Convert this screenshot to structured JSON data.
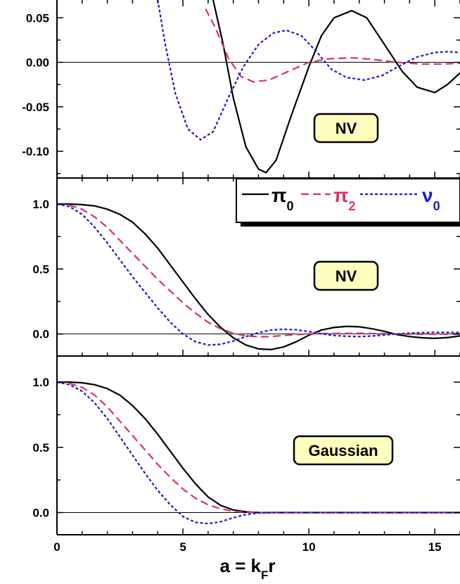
{
  "chart_data": [
    {
      "type": "line",
      "title": "",
      "xlabel": "",
      "ylabel": "",
      "xlim": [
        0,
        16
      ],
      "ylim": [
        -0.13,
        0.07
      ],
      "yticks": [
        0.05,
        0.0,
        -0.05,
        -0.1
      ],
      "ytick_labels": [
        "0.05",
        "0.00",
        "-0.05",
        "-0.10"
      ],
      "grid": false,
      "annotation": "NV",
      "series": [
        {
          "key": "pi0",
          "color": "#000000",
          "dash": "solid",
          "points": [
            [
              6.2,
              0.07
            ],
            [
              6.6,
              0.02
            ],
            [
              7.0,
              -0.04
            ],
            [
              7.5,
              -0.095
            ],
            [
              8.0,
              -0.12
            ],
            [
              8.3,
              -0.124
            ],
            [
              8.7,
              -0.11
            ],
            [
              9.3,
              -0.06
            ],
            [
              10.0,
              -0.005
            ],
            [
              10.5,
              0.03
            ],
            [
              11.0,
              0.05
            ],
            [
              11.7,
              0.058
            ],
            [
              12.3,
              0.05
            ],
            [
              13.0,
              0.02
            ],
            [
              13.7,
              -0.01
            ],
            [
              14.3,
              -0.028
            ],
            [
              15.0,
              -0.034
            ],
            [
              15.5,
              -0.025
            ],
            [
              16.0,
              -0.012
            ]
          ]
        },
        {
          "key": "pi2",
          "color": "#d6336c",
          "dash": "long-dash",
          "points": [
            [
              5.9,
              0.06
            ],
            [
              6.3,
              0.038
            ],
            [
              6.8,
              0.005
            ],
            [
              7.3,
              -0.016
            ],
            [
              7.8,
              -0.022
            ],
            [
              8.4,
              -0.02
            ],
            [
              9.2,
              -0.01
            ],
            [
              10.0,
              0.0
            ],
            [
              10.8,
              0.004
            ],
            [
              11.8,
              0.005
            ],
            [
              12.6,
              0.003
            ],
            [
              13.5,
              0.0
            ],
            [
              14.5,
              -0.002
            ],
            [
              15.3,
              -0.002
            ],
            [
              16.0,
              -0.001
            ]
          ]
        },
        {
          "key": "nu0",
          "color": "#1c1cc4",
          "dash": "short-dash",
          "points": [
            [
              4.0,
              0.07
            ],
            [
              4.3,
              0.02
            ],
            [
              4.7,
              -0.035
            ],
            [
              5.2,
              -0.075
            ],
            [
              5.7,
              -0.087
            ],
            [
              6.2,
              -0.078
            ],
            [
              6.8,
              -0.04
            ],
            [
              7.4,
              -0.005
            ],
            [
              8.0,
              0.02
            ],
            [
              8.6,
              0.033
            ],
            [
              9.1,
              0.036
            ],
            [
              9.7,
              0.03
            ],
            [
              10.3,
              0.012
            ],
            [
              10.9,
              -0.008
            ],
            [
              11.5,
              -0.017
            ],
            [
              12.2,
              -0.02
            ],
            [
              12.9,
              -0.015
            ],
            [
              13.6,
              -0.004
            ],
            [
              14.3,
              0.006
            ],
            [
              15.0,
              0.011
            ],
            [
              15.5,
              0.012
            ],
            [
              16.0,
              0.011
            ]
          ]
        }
      ]
    },
    {
      "type": "line",
      "title": "",
      "xlabel": "",
      "ylabel": "",
      "xlim": [
        0,
        16
      ],
      "ylim": [
        -0.17,
        1.2
      ],
      "yticks": [
        1.0,
        0.5,
        0.0
      ],
      "ytick_labels": [
        "1.0",
        "0.5",
        "0.0"
      ],
      "grid": false,
      "annotation": "NV",
      "legend": {
        "placement": "top-right",
        "entries": [
          {
            "key": "pi0",
            "symbol": "π",
            "sub": "0"
          },
          {
            "key": "pi2",
            "symbol": "π",
            "sub": "2"
          },
          {
            "key": "nu0",
            "symbol": "ν",
            "sub": "0"
          }
        ]
      },
      "series": [
        {
          "key": "pi0",
          "color": "#000000",
          "dash": "solid",
          "points": [
            [
              0,
              1.0
            ],
            [
              0.5,
              1.0
            ],
            [
              1,
              0.995
            ],
            [
              1.5,
              0.985
            ],
            [
              2,
              0.96
            ],
            [
              2.5,
              0.92
            ],
            [
              3,
              0.86
            ],
            [
              3.5,
              0.77
            ],
            [
              4,
              0.66
            ],
            [
              4.5,
              0.53
            ],
            [
              5,
              0.4
            ],
            [
              5.5,
              0.27
            ],
            [
              6,
              0.15
            ],
            [
              6.5,
              0.05
            ],
            [
              7,
              -0.03
            ],
            [
              7.5,
              -0.085
            ],
            [
              8,
              -0.115
            ],
            [
              8.5,
              -0.12
            ],
            [
              9,
              -0.1
            ],
            [
              9.5,
              -0.06
            ],
            [
              10,
              -0.01
            ],
            [
              10.5,
              0.03
            ],
            [
              11,
              0.05
            ],
            [
              11.5,
              0.058
            ],
            [
              12,
              0.055
            ],
            [
              12.5,
              0.04
            ],
            [
              13,
              0.02
            ],
            [
              13.5,
              -0.005
            ],
            [
              14,
              -0.02
            ],
            [
              14.5,
              -0.03
            ],
            [
              15,
              -0.034
            ],
            [
              15.5,
              -0.028
            ],
            [
              16,
              -0.015
            ]
          ]
        },
        {
          "key": "pi2",
          "color": "#d6336c",
          "dash": "long-dash",
          "points": [
            [
              0,
              1.0
            ],
            [
              0.5,
              0.99
            ],
            [
              1,
              0.96
            ],
            [
              1.5,
              0.9
            ],
            [
              2,
              0.82
            ],
            [
              2.5,
              0.72
            ],
            [
              3,
              0.62
            ],
            [
              3.5,
              0.52
            ],
            [
              4,
              0.42
            ],
            [
              4.5,
              0.33
            ],
            [
              5,
              0.24
            ],
            [
              5.5,
              0.16
            ],
            [
              6,
              0.09
            ],
            [
              6.5,
              0.04
            ],
            [
              7,
              0.005
            ],
            [
              7.5,
              -0.015
            ],
            [
              8,
              -0.022
            ],
            [
              8.5,
              -0.02
            ],
            [
              9,
              -0.012
            ],
            [
              9.5,
              -0.005
            ],
            [
              10,
              0.0
            ],
            [
              11,
              0.004
            ],
            [
              12,
              0.005
            ],
            [
              13,
              0.002
            ],
            [
              14,
              -0.001
            ],
            [
              15,
              -0.002
            ],
            [
              16,
              -0.001
            ]
          ]
        },
        {
          "key": "nu0",
          "color": "#1c1cc4",
          "dash": "short-dash",
          "points": [
            [
              0,
              1.0
            ],
            [
              0.5,
              0.98
            ],
            [
              1,
              0.92
            ],
            [
              1.5,
              0.82
            ],
            [
              2,
              0.7
            ],
            [
              2.5,
              0.57
            ],
            [
              3,
              0.44
            ],
            [
              3.5,
              0.32
            ],
            [
              4,
              0.2
            ],
            [
              4.5,
              0.09
            ],
            [
              5,
              0.0
            ],
            [
              5.5,
              -0.06
            ],
            [
              6,
              -0.085
            ],
            [
              6.5,
              -0.08
            ],
            [
              7,
              -0.055
            ],
            [
              7.5,
              -0.02
            ],
            [
              8,
              0.01
            ],
            [
              8.5,
              0.03
            ],
            [
              9,
              0.036
            ],
            [
              9.5,
              0.032
            ],
            [
              10,
              0.018
            ],
            [
              10.5,
              0.002
            ],
            [
              11,
              -0.012
            ],
            [
              11.5,
              -0.018
            ],
            [
              12,
              -0.02
            ],
            [
              12.5,
              -0.016
            ],
            [
              13,
              -0.008
            ],
            [
              13.5,
              0.0
            ],
            [
              14,
              0.006
            ],
            [
              14.5,
              0.01
            ],
            [
              15,
              0.012
            ],
            [
              15.5,
              0.012
            ],
            [
              16,
              0.011
            ]
          ]
        }
      ]
    },
    {
      "type": "line",
      "title": "",
      "xlabel": "a = k",
      "xlabel_sub": "F",
      "xlabel_tail": "r",
      "ylabel": "",
      "xlim": [
        0,
        16
      ],
      "ylim": [
        -0.17,
        1.2
      ],
      "xticks": [
        0,
        5,
        10,
        15
      ],
      "xtick_labels": [
        "0",
        "5",
        "10",
        "15"
      ],
      "yticks": [
        1.0,
        0.5,
        0.0
      ],
      "ytick_labels": [
        "1.0",
        "0.5",
        "0.0"
      ],
      "grid": false,
      "annotation": "Gaussian",
      "series": [
        {
          "key": "pi0",
          "color": "#000000",
          "dash": "solid",
          "points": [
            [
              0,
              1.0
            ],
            [
              0.5,
              1.0
            ],
            [
              1,
              0.995
            ],
            [
              1.5,
              0.98
            ],
            [
              2,
              0.95
            ],
            [
              2.5,
              0.9
            ],
            [
              3,
              0.82
            ],
            [
              3.5,
              0.72
            ],
            [
              4,
              0.6
            ],
            [
              4.5,
              0.47
            ],
            [
              5,
              0.34
            ],
            [
              5.5,
              0.22
            ],
            [
              6,
              0.12
            ],
            [
              6.5,
              0.055
            ],
            [
              7,
              0.02
            ],
            [
              7.5,
              0.006
            ],
            [
              8,
              0.0
            ],
            [
              16,
              0.0
            ]
          ]
        },
        {
          "key": "pi2",
          "color": "#d6336c",
          "dash": "long-dash",
          "points": [
            [
              0,
              1.0
            ],
            [
              0.5,
              0.99
            ],
            [
              1,
              0.96
            ],
            [
              1.5,
              0.9
            ],
            [
              2,
              0.81
            ],
            [
              2.5,
              0.7
            ],
            [
              3,
              0.59
            ],
            [
              3.5,
              0.48
            ],
            [
              4,
              0.37
            ],
            [
              4.5,
              0.27
            ],
            [
              5,
              0.18
            ],
            [
              5.5,
              0.11
            ],
            [
              6,
              0.06
            ],
            [
              6.5,
              0.028
            ],
            [
              7,
              0.01
            ],
            [
              7.5,
              0.002
            ],
            [
              8,
              0.0
            ],
            [
              16,
              0.0
            ]
          ]
        },
        {
          "key": "nu0",
          "color": "#1c1cc4",
          "dash": "short-dash",
          "points": [
            [
              0,
              1.0
            ],
            [
              0.5,
              0.98
            ],
            [
              1,
              0.93
            ],
            [
              1.5,
              0.84
            ],
            [
              2,
              0.72
            ],
            [
              2.5,
              0.58
            ],
            [
              3,
              0.44
            ],
            [
              3.5,
              0.3
            ],
            [
              4,
              0.17
            ],
            [
              4.5,
              0.06
            ],
            [
              5,
              -0.03
            ],
            [
              5.5,
              -0.075
            ],
            [
              6,
              -0.085
            ],
            [
              6.5,
              -0.07
            ],
            [
              7,
              -0.04
            ],
            [
              7.5,
              -0.015
            ],
            [
              8,
              -0.003
            ],
            [
              8.5,
              0.0
            ],
            [
              16,
              0.0
            ]
          ]
        }
      ]
    }
  ]
}
